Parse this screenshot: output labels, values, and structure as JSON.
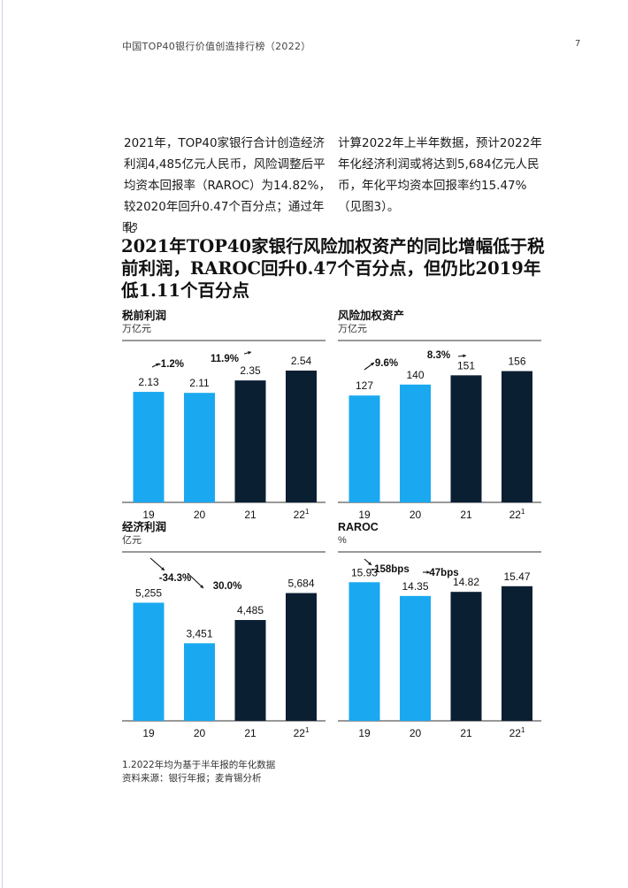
{
  "header": {
    "title": "中国TOP40银行价值创造排行榜（2022）",
    "page_number": "7"
  },
  "body_text": {
    "left": "2021年，TOP40家银行合计创造经济利润4,485亿元人民币，风险调整后平均资本回报率（RAROC）为14.82%，较2020年回升0.47个百分点；通过年化",
    "right": "计算2022年上半年数据，预计2022年年化经济利润或将达到5,684亿元人民币，年化平均资本回报率约15.47%（见图3）。"
  },
  "figure": {
    "label": "图3",
    "title": "2021年TOP40家银行风险加权资产的同比增幅低于税前利润，RAROC回升0.47个百分点，但仍比2019年低1.11个百分点"
  },
  "colors": {
    "light_bar": "#1aa9f0",
    "dark_bar": "#0b1f33"
  },
  "chart_data": [
    {
      "type": "bar",
      "title": "税前利润",
      "unit": "万亿元",
      "categories": [
        "19",
        "20",
        "21",
        "22"
      ],
      "category_superscripts": [
        "",
        "",
        "",
        "1"
      ],
      "values": [
        2.13,
        2.11,
        2.35,
        2.54
      ],
      "value_labels": [
        "2.13",
        "2.11",
        "2.35",
        "2.54"
      ],
      "bar_colors": [
        "#1aa9f0",
        "#1aa9f0",
        "#0b1f33",
        "#0b1f33"
      ],
      "ylim": [
        0,
        3.0
      ],
      "annotations": [
        "-1.2%",
        "11.9%"
      ]
    },
    {
      "type": "bar",
      "title": "风险加权资产",
      "unit": "万亿元",
      "categories": [
        "19",
        "20",
        "21",
        "22"
      ],
      "category_superscripts": [
        "",
        "",
        "",
        "1"
      ],
      "values": [
        127,
        140,
        151,
        156
      ],
      "value_labels": [
        "127",
        "140",
        "151",
        "156"
      ],
      "bar_colors": [
        "#1aa9f0",
        "#1aa9f0",
        "#0b1f33",
        "#0b1f33"
      ],
      "ylim": [
        0,
        185
      ],
      "annotations": [
        "9.6%",
        "8.3%"
      ]
    },
    {
      "type": "bar",
      "title": "经济利润",
      "unit": "亿元",
      "categories": [
        "19",
        "20",
        "21",
        "22"
      ],
      "category_superscripts": [
        "",
        "",
        "",
        "1"
      ],
      "values": [
        5255,
        3451,
        4485,
        5684
      ],
      "value_labels": [
        "5,255",
        "3,451",
        "4,485",
        "5,684"
      ],
      "bar_colors": [
        "#1aa9f0",
        "#1aa9f0",
        "#0b1f33",
        "#0b1f33"
      ],
      "ylim": [
        0,
        7200
      ],
      "annotations": [
        "-34.3%",
        "30.0%"
      ]
    },
    {
      "type": "bar",
      "title": "RAROC",
      "unit": "%",
      "categories": [
        "19",
        "20",
        "21",
        "22"
      ],
      "category_superscripts": [
        "",
        "",
        "",
        "1"
      ],
      "values": [
        15.93,
        14.35,
        14.82,
        15.47
      ],
      "value_labels": [
        "15.93",
        "14.35",
        "14.82",
        "15.47"
      ],
      "bar_colors": [
        "#1aa9f0",
        "#1aa9f0",
        "#0b1f33",
        "#0b1f33"
      ],
      "ylim": [
        0,
        18.6
      ],
      "annotations": [
        "-158bps",
        "47bps"
      ]
    }
  ],
  "footnotes": {
    "note": "1.2022年均为基于半年报的年化数据",
    "source": "资料来源：银行年报；麦肯锡分析"
  }
}
